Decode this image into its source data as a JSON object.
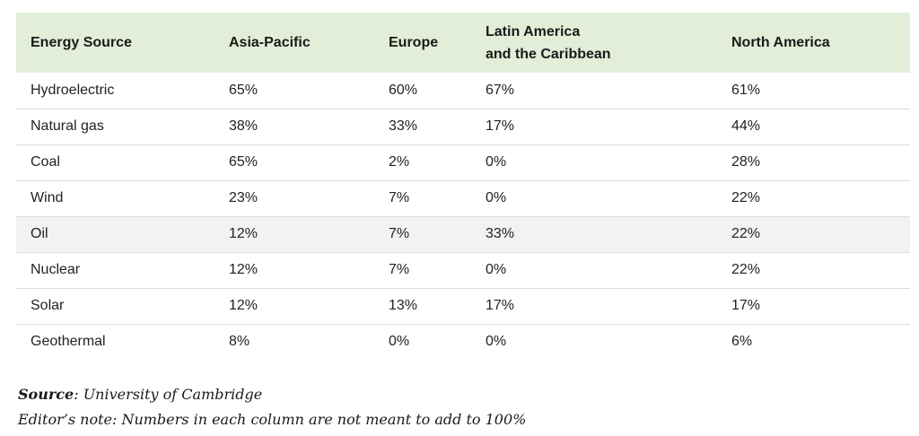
{
  "table": {
    "headers": [
      {
        "label": "Energy Source"
      },
      {
        "label": "Asia-Pacific"
      },
      {
        "label": "Europe"
      },
      {
        "line1": "Latin America",
        "line2": "and the Caribbean"
      },
      {
        "label": "North America"
      }
    ],
    "rows": [
      [
        "Hydroelectric",
        "65%",
        "60%",
        "67%",
        "61%"
      ],
      [
        "Natural gas",
        "38%",
        "33%",
        "17%",
        "44%"
      ],
      [
        "Coal",
        "65%",
        "2%",
        "0%",
        "28%"
      ],
      [
        "Wind",
        "23%",
        "7%",
        "0%",
        "22%"
      ],
      [
        "Oil",
        "12%",
        "7%",
        "33%",
        "22%"
      ],
      [
        "Nuclear",
        "12%",
        "7%",
        "0%",
        "22%"
      ],
      [
        "Solar",
        "12%",
        "13%",
        "17%",
        "17%"
      ],
      [
        "Geothermal",
        "8%",
        "0%",
        "0%",
        "6%"
      ]
    ],
    "colors": {
      "header_bg": "#e2eed8",
      "alt_row_bg": "#f2f2f2",
      "row_border": "#dcdcdc"
    }
  },
  "notes": {
    "source_label": "Source",
    "source_text": ": University of Cambridge",
    "editor_note": "Editor’s note: Numbers in each column are not meant to add to 100%"
  }
}
